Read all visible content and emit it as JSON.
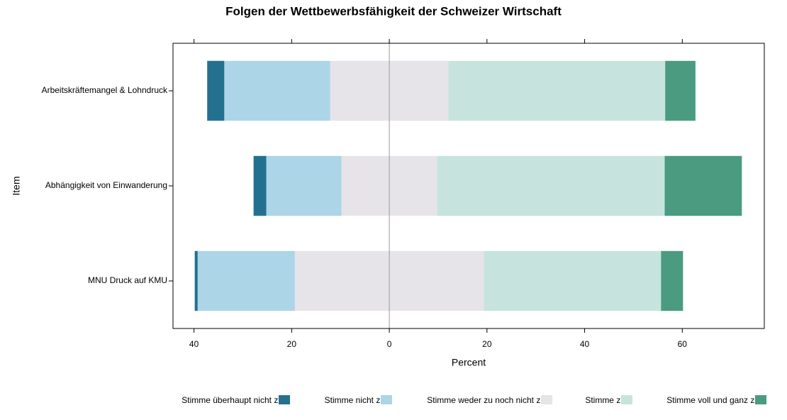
{
  "chart_data": {
    "type": "diverging_bar",
    "title": "Folgen der Wettbewerbsfähigkeit der Schweizer Wirtschaft",
    "xlabel": "Percent",
    "ylabel": "Item",
    "categories": [
      "Arbeitskräftemangel & Lohndruck",
      "Abhängigkeit von Einwanderung",
      "MNU Druck auf KMU"
    ],
    "series": [
      {
        "name": "Stimme überhaupt nicht zu",
        "color": "#24718f",
        "values": [
          3.5,
          2.6,
          0.6
        ]
      },
      {
        "name": "Stimme nicht zu",
        "color": "#acd5e8",
        "values": [
          21.7,
          15.4,
          19.9
        ]
      },
      {
        "name": "Stimme weder zu noch nicht zu",
        "color": "#e6e4e8",
        "values": [
          24.2,
          19.6,
          38.7
        ]
      },
      {
        "name": "Stimme zu",
        "color": "#c6e4dd",
        "values": [
          44.4,
          46.6,
          36.3
        ]
      },
      {
        "name": "Stimme voll und ganz zu",
        "color": "#4a9b80",
        "values": [
          6.2,
          15.8,
          4.5
        ]
      }
    ],
    "xlim": [
      -44.3,
      76.8
    ],
    "xticks": [
      {
        "value": -40,
        "label": "40"
      },
      {
        "value": -20,
        "label": "20"
      },
      0,
      20,
      40,
      60
    ]
  }
}
